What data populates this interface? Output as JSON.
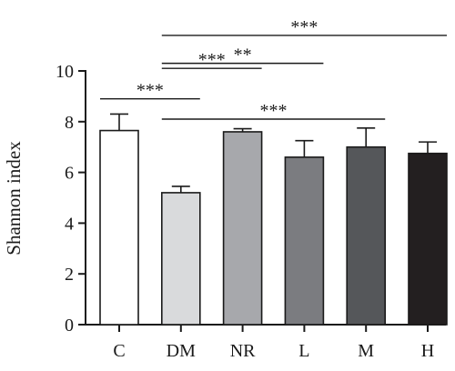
{
  "chart_data": {
    "type": "bar",
    "categories": [
      "C",
      "DM",
      "NR",
      "L",
      "M",
      "H"
    ],
    "values": [
      7.65,
      5.2,
      7.6,
      6.6,
      7.0,
      6.75
    ],
    "errors": [
      0.65,
      0.25,
      0.12,
      0.65,
      0.75,
      0.45
    ],
    "colors": [
      "#ffffff",
      "#d9dadc",
      "#a7a8ac",
      "#7b7c80",
      "#55575a",
      "#231f20"
    ],
    "ylabel": "Shannon index",
    "xlabel": "",
    "ylim": [
      0,
      10
    ],
    "yticks": [
      "0",
      "2",
      "4",
      "6",
      "8",
      "10"
    ],
    "grid": false,
    "significance": [
      {
        "from": "C",
        "to": "DM",
        "label": "***",
        "level": 8.9
      },
      {
        "from": "DM",
        "to": "NR",
        "label": "***",
        "level": 10.1
      },
      {
        "from": "DM",
        "to": "L",
        "label": "**",
        "level": 10.3
      },
      {
        "from": "DM",
        "to": "M",
        "label": "***",
        "level": 8.1
      },
      {
        "from": "DM",
        "to": "H",
        "label": "***",
        "level": 11.4
      }
    ]
  }
}
